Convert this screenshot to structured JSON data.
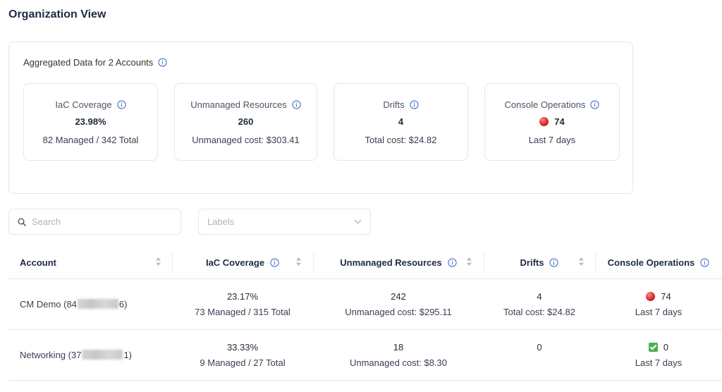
{
  "page": {
    "title": "Organization View"
  },
  "aggregate": {
    "title": "Aggregated Data for 2 Accounts",
    "metrics": [
      {
        "label": "IaC Coverage",
        "value": "23.98%",
        "sub": "82 Managed / 342 Total"
      },
      {
        "label": "Unmanaged Resources",
        "value": "260",
        "sub": "Unmanaged cost: $303.41"
      },
      {
        "label": "Drifts",
        "value": "4",
        "sub": "Total cost: $24.82"
      },
      {
        "label": "Console Operations",
        "value": "74",
        "sub": "Last 7 days",
        "status_icon": "red-circle"
      }
    ]
  },
  "filters": {
    "search_placeholder": "Search",
    "labels_placeholder": "Labels"
  },
  "table": {
    "columns": [
      "Account",
      "IaC Coverage",
      "Unmanaged Resources",
      "Drifts",
      "Console Operations"
    ],
    "rows": [
      {
        "account_prefix": "CM Demo (84",
        "account_suffix": "6)",
        "coverage_pct": "23.17%",
        "coverage_detail": "73 Managed / 315 Total",
        "unmanaged": "242",
        "unmanaged_cost": "Unmanaged cost: $295.11",
        "drifts": "4",
        "drifts_cost": "Total cost: $24.82",
        "console_ops": "74",
        "console_period": "Last 7 days",
        "console_icon": "red-circle"
      },
      {
        "account_prefix": "Networking (37",
        "account_suffix": "1)",
        "coverage_pct": "33.33%",
        "coverage_detail": "9 Managed / 27 Total",
        "unmanaged": "18",
        "unmanaged_cost": "Unmanaged cost: $8.30",
        "drifts": "0",
        "console_ops": "0",
        "console_period": "Last 7 days",
        "console_icon": "green-check"
      }
    ]
  }
}
